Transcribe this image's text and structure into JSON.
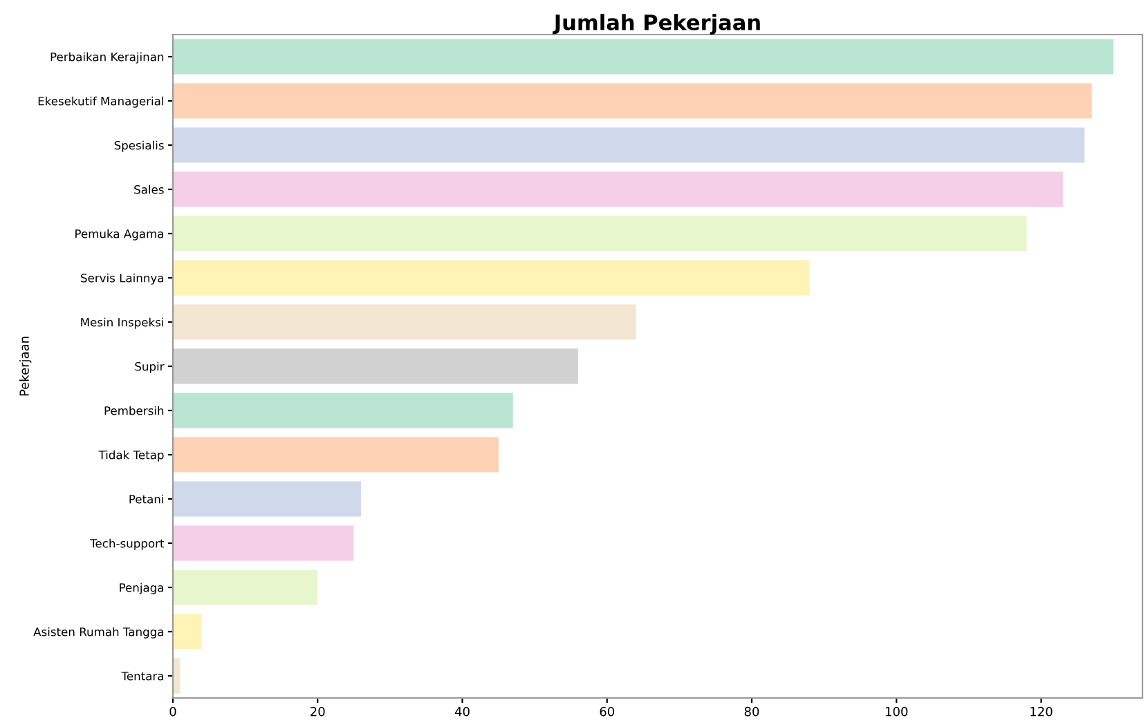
{
  "chart_data": {
    "type": "bar",
    "orientation": "horizontal",
    "title": "Jumlah Pekerjaan",
    "ylabel": "Pekerjaan",
    "categories": [
      "Perbaikan Kerajinan",
      "Ekesekutif Managerial",
      "Spesialis",
      "Sales",
      "Pemuka Agama",
      "Servis Lainnya",
      "Mesin Inspeksi",
      "Supir",
      "Pembersih",
      "Tidak Tetap",
      "Petani",
      "Tech-support",
      "Penjaga",
      "Asisten Rumah Tangga",
      "Tentara"
    ],
    "values": [
      130,
      127,
      126,
      123,
      118,
      88,
      64,
      56,
      47,
      45,
      26,
      25,
      20,
      4,
      1
    ],
    "colors": [
      "#b3e2cd",
      "#fdcdac",
      "#cbd5e8",
      "#f4cae4",
      "#e6f5c9",
      "#fff2ae",
      "#f1e2cc",
      "#cccccc",
      "#b3e2cd",
      "#fdcdac",
      "#cbd5e8",
      "#f4cae4",
      "#e6f5c9",
      "#fff2ae",
      "#f1e2cc"
    ],
    "xlim": [
      0,
      134
    ],
    "xticks": [
      0,
      20,
      40,
      60,
      80,
      100,
      120
    ],
    "grid": false
  }
}
